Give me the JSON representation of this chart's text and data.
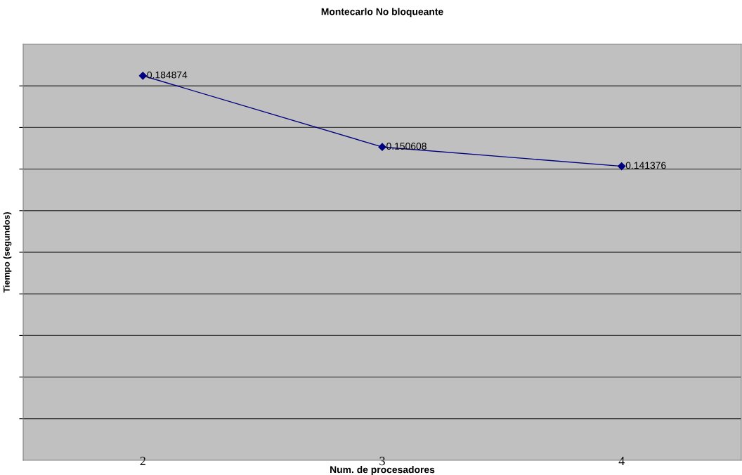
{
  "chart_data": {
    "type": "line",
    "title": "Montecarlo No bloqueante",
    "xlabel": "Num. de procesadores",
    "ylabel": "Tiempo (segundos)",
    "categories": [
      "2",
      "3",
      "4"
    ],
    "series": [
      {
        "color": "#000080",
        "values": [
          0.184874,
          0.150608,
          0.141376
        ]
      }
    ],
    "ylim": [
      0,
      0.2
    ],
    "yticks": [
      {
        "value": 0.02,
        "label": null
      },
      {
        "value": 0.04,
        "label": null
      },
      {
        "value": 0.06,
        "label": null
      },
      {
        "value": 0.08,
        "label": null
      },
      {
        "value": 0.1,
        "label": null
      },
      {
        "value": 0.12,
        "label": null
      },
      {
        "value": 0.14,
        "label": null
      },
      {
        "value": 0.16,
        "label": null
      },
      {
        "value": 0.18,
        "label": null
      }
    ],
    "tick_labels": "x",
    "grid": "y",
    "marker": "diamond",
    "line_style": "solid",
    "data_labels": true
  }
}
